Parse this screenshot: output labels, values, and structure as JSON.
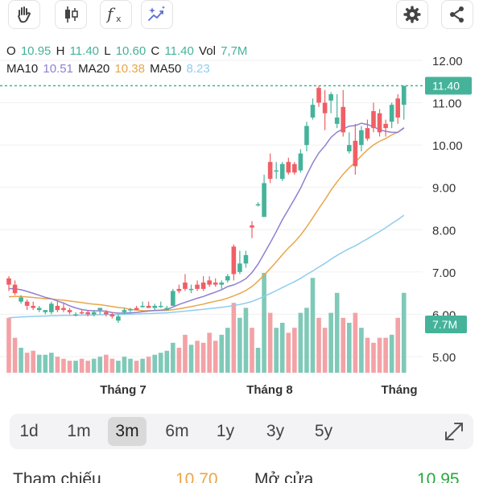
{
  "toolbar": {
    "left_buttons": [
      "hand-icon",
      "candlestick-icon",
      "fx-icon",
      "sparkle-chart-icon"
    ],
    "fx_label": "fx",
    "right_buttons": [
      "gear-icon",
      "share-icon"
    ]
  },
  "ohlc": {
    "o_label": "O",
    "o_value": "10.95",
    "h_label": "H",
    "h_value": "11.40",
    "l_label": "L",
    "l_value": "10.60",
    "c_label": "C",
    "c_value": "11.40",
    "vol_label": "Vol",
    "vol_value": "7,7M"
  },
  "ma": {
    "ma10_label": "MA10",
    "ma10_value": "10.51",
    "ma20_label": "MA20",
    "ma20_value": "10.38",
    "ma50_label": "MA50",
    "ma50_value": "8.23"
  },
  "colors": {
    "up": "#45b39a",
    "down": "#ef5f65",
    "up_vol": "#7fc9b8",
    "down_vol": "#f3a2a6",
    "ma10": "#8f7fd1",
    "ma20": "#e9a64b",
    "ma50": "#8fcdee",
    "last_price": "#45b39a"
  },
  "chart_data": {
    "type": "candlestick",
    "ylim": [
      4.5,
      12.25
    ],
    "y_ticks": [
      "12.00",
      "11.00",
      "10.00",
      "9.00",
      "8.00",
      "7.00",
      "6.00",
      "5.00"
    ],
    "x_labels": [
      "Tháng 7",
      "Tháng 8",
      "Tháng"
    ],
    "last_price_label": "11.40",
    "volume_label": "7.7M",
    "last_price": 11.4,
    "candles": [
      [
        6.85,
        6.9,
        6.55,
        6.7
      ],
      [
        6.7,
        6.8,
        6.45,
        6.5
      ],
      [
        6.3,
        6.45,
        6.25,
        6.4
      ],
      [
        6.3,
        6.35,
        6.1,
        6.2
      ],
      [
        6.2,
        6.3,
        6.1,
        6.15
      ],
      [
        6.1,
        6.2,
        6.05,
        6.15
      ],
      [
        6.05,
        6.1,
        6.0,
        6.1
      ],
      [
        6.05,
        6.3,
        6.0,
        6.25
      ],
      [
        6.2,
        6.3,
        6.05,
        6.1
      ],
      [
        6.15,
        6.25,
        6.05,
        6.1
      ],
      [
        6.1,
        6.15,
        6.0,
        6.05
      ],
      [
        6.0,
        6.05,
        5.95,
        6.0
      ],
      [
        6.05,
        6.1,
        6.0,
        6.02
      ],
      [
        6.05,
        6.1,
        5.95,
        6.0
      ],
      [
        6.0,
        6.1,
        5.95,
        6.05
      ],
      [
        6.1,
        6.15,
        6.0,
        6.15
      ],
      [
        6.05,
        6.1,
        5.95,
        6.0
      ],
      [
        6.0,
        6.05,
        5.9,
        5.95
      ],
      [
        5.85,
        6.0,
        5.8,
        5.95
      ],
      [
        6.05,
        6.15,
        6.0,
        6.1
      ],
      [
        6.1,
        6.15,
        6.05,
        6.12
      ],
      [
        6.15,
        6.2,
        6.1,
        6.1
      ],
      [
        6.2,
        6.3,
        6.15,
        6.2
      ],
      [
        6.2,
        6.3,
        6.15,
        6.15
      ],
      [
        6.15,
        6.25,
        6.1,
        6.2
      ],
      [
        6.2,
        6.3,
        6.15,
        6.2
      ],
      [
        6.1,
        6.2,
        6.1,
        6.15
      ],
      [
        6.2,
        6.6,
        6.2,
        6.55
      ],
      [
        6.6,
        6.7,
        6.5,
        6.55
      ],
      [
        6.75,
        6.95,
        6.55,
        6.6
      ],
      [
        6.6,
        6.7,
        6.5,
        6.6
      ],
      [
        6.7,
        6.8,
        6.55,
        6.6
      ],
      [
        6.75,
        6.9,
        6.55,
        6.6
      ],
      [
        6.8,
        6.9,
        6.65,
        6.7
      ],
      [
        6.75,
        6.85,
        6.65,
        6.7
      ],
      [
        6.7,
        6.8,
        6.6,
        6.75
      ],
      [
        6.8,
        6.95,
        6.75,
        6.9
      ],
      [
        7.6,
        7.65,
        6.8,
        6.95
      ],
      [
        7.0,
        7.5,
        6.95,
        7.2
      ],
      [
        7.2,
        7.5,
        7.1,
        7.4
      ],
      [
        8.1,
        8.2,
        7.8,
        8.05
      ],
      [
        8.6,
        8.65,
        8.55,
        8.6
      ],
      [
        8.3,
        9.3,
        8.3,
        9.1
      ],
      [
        9.6,
        9.8,
        9.1,
        9.2
      ],
      [
        9.4,
        9.6,
        9.2,
        9.4
      ],
      [
        9.2,
        9.6,
        9.15,
        9.55
      ],
      [
        9.6,
        9.7,
        9.3,
        9.35
      ],
      [
        9.55,
        9.6,
        9.3,
        9.35
      ],
      [
        9.4,
        9.9,
        9.35,
        9.8
      ],
      [
        10.0,
        10.55,
        9.85,
        10.45
      ],
      [
        10.65,
        11.1,
        10.6,
        10.95
      ],
      [
        11.35,
        11.4,
        10.9,
        11.0
      ],
      [
        11.0,
        11.3,
        10.35,
        10.75
      ],
      [
        11.05,
        11.25,
        10.75,
        11.2
      ],
      [
        10.5,
        11.2,
        10.4,
        10.65
      ],
      [
        10.9,
        11.3,
        10.2,
        10.3
      ],
      [
        9.85,
        10.3,
        9.8,
        10.0
      ],
      [
        10.1,
        10.5,
        9.3,
        9.5
      ],
      [
        10.0,
        10.45,
        9.85,
        10.35
      ],
      [
        10.4,
        10.6,
        10.1,
        10.15
      ],
      [
        10.8,
        11.0,
        10.3,
        10.4
      ],
      [
        10.75,
        10.85,
        10.2,
        10.3
      ],
      [
        10.5,
        10.6,
        10.2,
        10.4
      ],
      [
        10.55,
        11.0,
        10.4,
        10.95
      ],
      [
        11.1,
        11.2,
        10.5,
        10.65
      ],
      [
        10.95,
        11.4,
        10.6,
        11.4
      ]
    ],
    "volume": [
      0.55,
      0.35,
      0.25,
      0.2,
      0.22,
      0.18,
      0.18,
      0.2,
      0.16,
      0.14,
      0.12,
      0.12,
      0.14,
      0.12,
      0.14,
      0.16,
      0.18,
      0.14,
      0.12,
      0.16,
      0.14,
      0.12,
      0.14,
      0.16,
      0.18,
      0.2,
      0.22,
      0.3,
      0.25,
      0.38,
      0.28,
      0.32,
      0.3,
      0.4,
      0.32,
      0.38,
      0.45,
      0.7,
      0.55,
      0.65,
      0.45,
      0.25,
      1.0,
      0.6,
      0.45,
      0.5,
      0.4,
      0.45,
      0.6,
      0.65,
      0.95,
      0.55,
      0.45,
      0.6,
      0.8,
      0.55,
      0.5,
      0.6,
      0.45,
      0.35,
      0.3,
      0.35,
      0.35,
      0.38,
      0.55,
      0.8
    ]
  },
  "timeframes": [
    "1d",
    "1m",
    "3m",
    "6m",
    "1y",
    "3y",
    "5y"
  ],
  "active_timeframe": "3m",
  "stats": {
    "ref_label": "Tham chiếu",
    "ref_value": "10.70",
    "open_label": "Mở cửa",
    "open_value": "10.95"
  }
}
